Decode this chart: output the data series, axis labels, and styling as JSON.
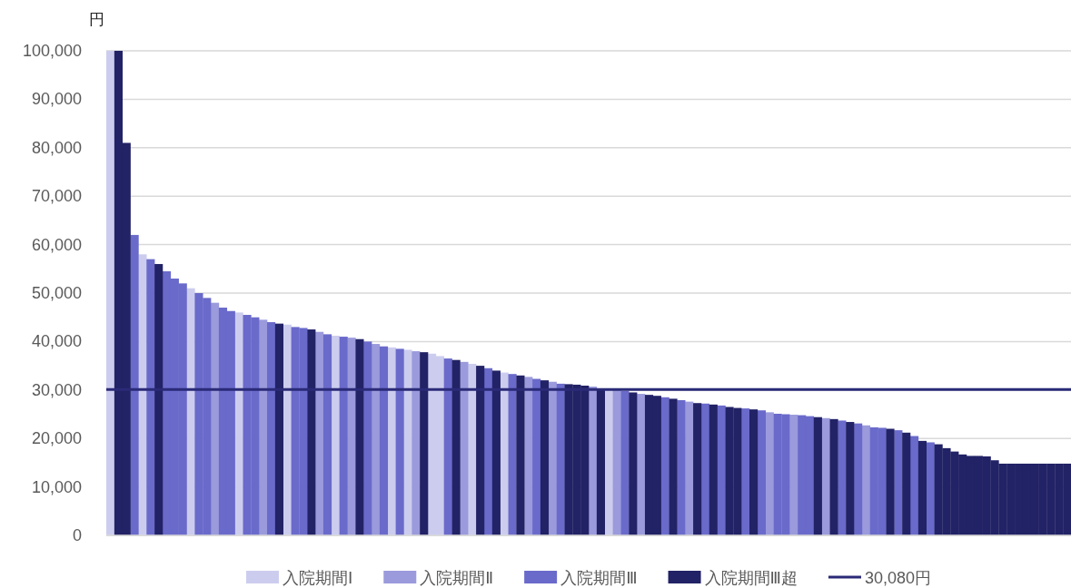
{
  "chart_data": {
    "type": "bar",
    "ylabel": "円",
    "ylim": [
      0,
      100000
    ],
    "yticks": [
      {
        "value": 0,
        "label": "0"
      },
      {
        "value": 10000,
        "label": "10,000"
      },
      {
        "value": 20000,
        "label": "20,000"
      },
      {
        "value": 30000,
        "label": "30,000"
      },
      {
        "value": 40000,
        "label": "40,000"
      },
      {
        "value": 50000,
        "label": "50,000"
      },
      {
        "value": 60000,
        "label": "60,000"
      },
      {
        "value": 70000,
        "label": "70,000"
      },
      {
        "value": 80000,
        "label": "80,000"
      },
      {
        "value": 90000,
        "label": "90,000"
      },
      {
        "value": 100000,
        "label": "100,000"
      }
    ],
    "grid": "y",
    "legend": "bottom",
    "categories": [
      null,
      null,
      null,
      null,
      null,
      null,
      null,
      null,
      null,
      null,
      null,
      null,
      null,
      null,
      null,
      null,
      null,
      null,
      null,
      null,
      null,
      null,
      null,
      null,
      null,
      null,
      null,
      null,
      null,
      null,
      null,
      null,
      null,
      null,
      null,
      null,
      null,
      null,
      null,
      null,
      null,
      null,
      null,
      null,
      null,
      null,
      null,
      null,
      null,
      null,
      null,
      null,
      null,
      null,
      null,
      null,
      null,
      null,
      null,
      null,
      null,
      null,
      null,
      null,
      null,
      null,
      null,
      null,
      null,
      null,
      null,
      null,
      null,
      null,
      null,
      null,
      null,
      null,
      null,
      null,
      null,
      null,
      null,
      null,
      null,
      null,
      null,
      null,
      null,
      null,
      null,
      null,
      null,
      null,
      null,
      null,
      null,
      null,
      null,
      null,
      null,
      null,
      null,
      null,
      null,
      null,
      null,
      null,
      null,
      null,
      null,
      null,
      null,
      null,
      null,
      null,
      null,
      null,
      null,
      null
    ],
    "series": [
      {
        "name": "入院期間Ⅰ",
        "color": "#cccdee",
        "values": [
          100000,
          null,
          null,
          null,
          58000,
          null,
          null,
          null,
          null,
          null,
          51000,
          null,
          null,
          null,
          null,
          null,
          46000,
          null,
          null,
          null,
          null,
          null,
          43500,
          null,
          null,
          null,
          null,
          null,
          41200,
          null,
          null,
          null,
          null,
          null,
          null,
          38800,
          null,
          38300,
          null,
          null,
          37500,
          37000,
          null,
          null,
          null,
          35400,
          null,
          null,
          null,
          33600,
          null,
          null,
          null,
          null,
          null,
          null,
          null,
          null,
          null,
          null,
          null,
          null,
          30100,
          null,
          null,
          null,
          null,
          null,
          null,
          null,
          null,
          null,
          null,
          null,
          null,
          null,
          null,
          null,
          null,
          null,
          null,
          null,
          null,
          null,
          null,
          null,
          null,
          null,
          null,
          null,
          null,
          null,
          null,
          null,
          null,
          null,
          null,
          null,
          null,
          null,
          null,
          null,
          null,
          null,
          null,
          null,
          null,
          null,
          null,
          null,
          null,
          null,
          null,
          null,
          null,
          null,
          null,
          null,
          null,
          null
        ]
      },
      {
        "name": "入院期間Ⅱ",
        "color": "#9a9adc",
        "values": [
          null,
          null,
          null,
          null,
          null,
          null,
          null,
          null,
          null,
          null,
          null,
          null,
          null,
          48000,
          null,
          null,
          null,
          null,
          null,
          44500,
          null,
          null,
          null,
          null,
          null,
          null,
          42000,
          null,
          null,
          null,
          40800,
          null,
          null,
          39500,
          null,
          null,
          null,
          null,
          38000,
          null,
          null,
          null,
          null,
          null,
          35800,
          null,
          null,
          null,
          null,
          null,
          null,
          null,
          32700,
          null,
          null,
          31700,
          null,
          null,
          null,
          null,
          30700,
          null,
          null,
          30000,
          null,
          null,
          29200,
          null,
          null,
          null,
          null,
          null,
          27600,
          null,
          null,
          null,
          null,
          null,
          null,
          null,
          null,
          null,
          25400,
          null,
          null,
          24900,
          null,
          null,
          null,
          24200,
          null,
          null,
          null,
          null,
          22700,
          null,
          null,
          null,
          null,
          null,
          null,
          null,
          null,
          null,
          null,
          null,
          null,
          null,
          null,
          null,
          null,
          null,
          null,
          null,
          null,
          null,
          null,
          null,
          null,
          null
        ]
      },
      {
        "name": "入院期間Ⅲ",
        "color": "#6a6acb",
        "values": [
          null,
          null,
          null,
          62000,
          null,
          57000,
          null,
          54500,
          53000,
          52000,
          null,
          50000,
          49000,
          null,
          47000,
          46300,
          null,
          45500,
          45000,
          null,
          44000,
          null,
          null,
          43000,
          42800,
          null,
          null,
          41500,
          null,
          41000,
          null,
          null,
          40000,
          null,
          39000,
          null,
          38500,
          null,
          null,
          null,
          null,
          null,
          36500,
          null,
          null,
          null,
          null,
          34500,
          null,
          null,
          33300,
          null,
          null,
          32300,
          null,
          null,
          31300,
          null,
          null,
          null,
          null,
          null,
          null,
          null,
          29800,
          null,
          null,
          null,
          null,
          28500,
          null,
          27900,
          null,
          null,
          27200,
          null,
          26800,
          null,
          null,
          26200,
          null,
          25800,
          null,
          25100,
          25000,
          null,
          24800,
          24600,
          null,
          null,
          null,
          23700,
          null,
          23100,
          null,
          22300,
          22200,
          null,
          21700,
          null,
          20500,
          null,
          19200,
          null,
          null,
          null,
          null,
          null,
          null,
          null,
          null,
          null,
          null,
          null,
          null,
          null,
          null,
          null,
          null,
          null
        ]
      },
      {
        "name": "入院期間Ⅲ超",
        "color": "#222266",
        "values": [
          null,
          100000,
          81000,
          null,
          null,
          null,
          56000,
          null,
          null,
          null,
          null,
          null,
          null,
          null,
          null,
          null,
          null,
          null,
          null,
          null,
          null,
          43700,
          null,
          null,
          null,
          42500,
          null,
          null,
          null,
          null,
          null,
          40500,
          null,
          null,
          null,
          null,
          null,
          null,
          null,
          37800,
          null,
          null,
          null,
          36200,
          null,
          null,
          35000,
          null,
          34000,
          null,
          null,
          33000,
          null,
          null,
          32000,
          null,
          null,
          31200,
          31100,
          30900,
          null,
          30300,
          null,
          null,
          null,
          29500,
          null,
          29000,
          28800,
          null,
          28200,
          null,
          null,
          27300,
          null,
          27000,
          null,
          26500,
          26300,
          null,
          26000,
          null,
          null,
          null,
          null,
          null,
          null,
          null,
          24400,
          null,
          24000,
          null,
          23400,
          null,
          null,
          null,
          null,
          22000,
          null,
          21200,
          null,
          19500,
          null,
          18800,
          18000,
          17300,
          16700,
          16400,
          16400,
          16300,
          15500,
          14800,
          14800,
          14800,
          14800,
          14800,
          14800,
          14800,
          14800,
          14800
        ]
      }
    ],
    "ref_lines": [
      {
        "axis": "y",
        "value": 30080,
        "label": "30,080円",
        "color": "#2a2a77"
      }
    ]
  }
}
